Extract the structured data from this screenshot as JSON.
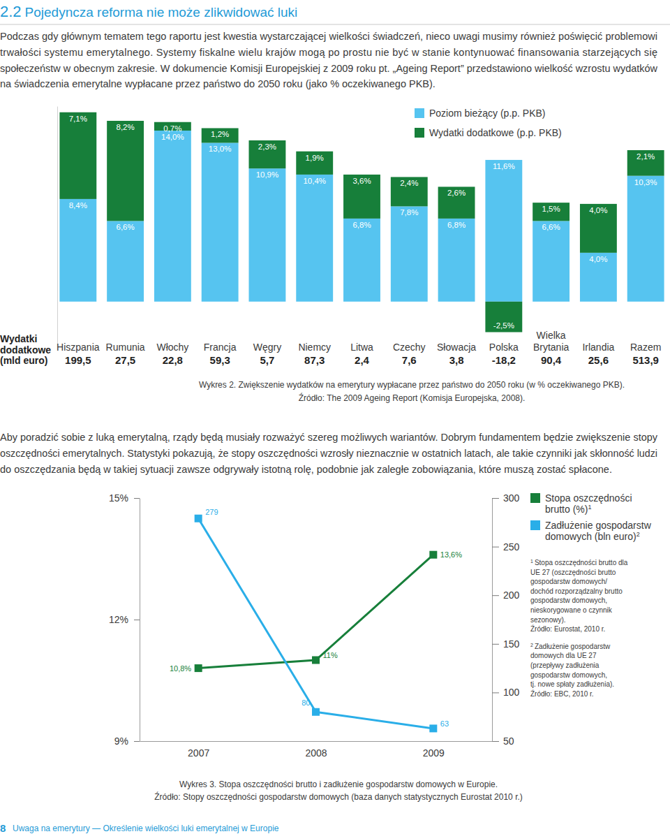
{
  "page": {
    "section_number": "2.2",
    "title": "Pojedyncza reforma nie może zlikwidować luki",
    "paragraphs": [
      [
        "Podczas gdy głównym tematem tego raportu jest kwestia wystarczającej wielkości świadczeń, nieco uwagi musimy również poświęcić problemowi",
        "trwałości systemu emerytalnego. Systemy fiskalne wielu krajów mogą po prostu nie być w stanie kontynuować finansowania starzejących się",
        "społeczeństw w obecnym zakresie. W dokumencie Komisji Europejskiej z 2009 roku pt. „Ageing Report” przedstawiono wielkość wzrostu wydatków",
        "na świadczenia emerytalne wypłacane przez państwo do 2050 roku (jako % oczekiwanego PKB)."
      ],
      [
        "Aby poradzić sobie z luką emerytalną, rządy będą musiały rozważyć szereg możliwych wariantów. Dobrym fundamentem będzie zwiększenie stopy",
        "oszczędności emerytalnych. Statystyki pokazują, że stopy oszczędności wzrosły nieznacznie w ostatnich latach, ale takie czynniki jak skłonność ludzi",
        "do oszczędzania będą w takiej sytuacji zawsze odgrywały istotną rolę, podobnie jak zaległe zobowiązania, które muszą zostać spłacone."
      ]
    ],
    "footer": {
      "page_number": "8",
      "text": "Uwaga na emerytury — Określenie wielkości luki emerytalnej w Europie"
    }
  },
  "chart_data": [
    {
      "type": "bar",
      "stacked": true,
      "data_labels": true,
      "tick_labels": false,
      "legend": "top-right",
      "categories": [
        "Hiszpania",
        "Rumunia",
        "Włochy",
        "Francja",
        "Węgry",
        "Niemcy",
        "Litwa",
        "Czechy",
        "Słowacja",
        "Polska",
        "Wielka Brytania",
        "Irlandia",
        "Razem"
      ],
      "ylim": [
        -3.5,
        16
      ],
      "series": [
        {
          "name": "Poziom bieżący (p.p. PKB)",
          "color": "#56c4f0",
          "values": [
            8.4,
            6.6,
            14.0,
            13.0,
            10.9,
            10.4,
            6.8,
            7.8,
            6.8,
            11.6,
            6.6,
            4.0,
            10.3
          ],
          "value_labels": [
            "8,4%",
            "6,6%",
            "14,0%",
            "13,0%",
            "10,9%",
            "10,4%",
            "6,8%",
            "7,8%",
            "6,8%",
            "11,6%",
            "6,6%",
            "4,0%",
            "10,3%"
          ]
        },
        {
          "name": "Wydatki dodatkowe (p.p. PKB)",
          "color": "#177f3a",
          "values": [
            7.1,
            8.2,
            0.7,
            1.2,
            2.3,
            1.9,
            3.6,
            2.4,
            2.6,
            -2.5,
            1.5,
            4.0,
            2.1
          ],
          "value_labels": [
            "7,1%",
            "8,2%",
            "0,7%",
            "1,2%",
            "2,3%",
            "1,9%",
            "3,6%",
            "2,4%",
            "2,6%",
            "-2,5%",
            "1,5%",
            "4,0%",
            "2,1%"
          ]
        }
      ],
      "table_row": {
        "label": [
          "Wydatki",
          "dodatkowe",
          "(mld euro)"
        ],
        "cells": [
          "199,5",
          "27,5",
          "22,8",
          "59,3",
          "5,7",
          "87,3",
          "2,4",
          "7,6",
          "3,8",
          "-18,2",
          "90,4",
          "25,6",
          "513,9"
        ]
      },
      "caption": [
        "Wykres 2. Zwiększenie wydatków na emerytury wypłacane przez państwo do 2050 roku (w % oczekiwanego PKB).",
        "Źródło: The 2009 Ageing Report (Komisja Europejska, 2008)."
      ]
    },
    {
      "type": "line",
      "data_labels": true,
      "marker": "square",
      "legend": "right",
      "x": [
        2007,
        2008,
        2009
      ],
      "xlim": [
        2006.5,
        2009.5
      ],
      "xticks": [
        2007,
        2008,
        2009
      ],
      "ylim": [
        9,
        15
      ],
      "yticks": [
        {
          "value": 9,
          "label": "9%"
        },
        {
          "value": 12,
          "label": "12%"
        },
        {
          "value": 15,
          "label": "15%"
        }
      ],
      "y2lim": [
        50,
        300
      ],
      "y2ticks": [
        50,
        100,
        150,
        200,
        250,
        300
      ],
      "series": [
        {
          "name": "Stopa oszczędności brutto (%)",
          "legend_note": "1",
          "color": "#177f3a",
          "values": [
            10.8,
            11,
            13.6
          ],
          "value_labels": [
            "10,8%",
            "11%",
            "13,6%"
          ]
        },
        {
          "name": "Zadłużenie gospodarstw domowych (bln euro)",
          "legend_note": "2",
          "color": "#2aaee8",
          "axis": "y2",
          "values": [
            279,
            80,
            63
          ]
        }
      ],
      "footnotes": [
        {
          "mark": "1",
          "lines": [
            "Stopa oszczędności brutto dla",
            "UE 27 (oszczędności brutto",
            "gospodarstw domowych/",
            "dochód rozporządzalny brutto",
            "gospodarstw domowych,",
            "nieskorygowane o czynnik",
            "sezonowy).",
            "Źródło: Eurostat, 2010 r."
          ]
        },
        {
          "mark": "2",
          "lines": [
            "Zadłużenie gospodarstw",
            "domowych dla UE 27",
            "(przepływy zadłużenia",
            "gospodarstw domowych,",
            "tj. nowe spłaty zadłużenia).",
            "Źródło: EBC, 2010 r."
          ]
        }
      ],
      "caption": [
        "Wykres 3. Stopa oszczędności brutto i zadłużenie gospodarstw domowych w Europie.",
        "Źródło: Stopy oszczędności gospodarstw domowych (baza danych statystycznych Eurostat 2010 r.)"
      ]
    }
  ]
}
